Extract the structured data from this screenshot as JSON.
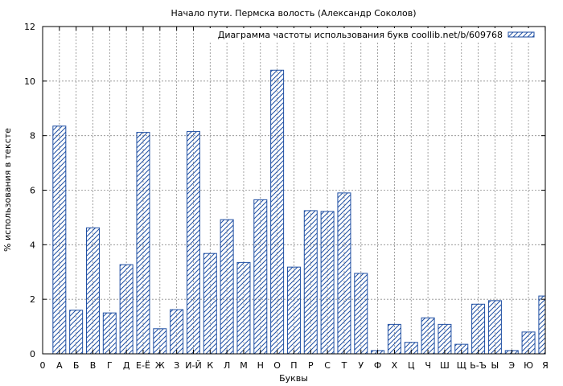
{
  "chart_data": {
    "type": "bar",
    "title": "Начало пути. Пермска волость (Александр Соколов)",
    "xlabel": "Буквы",
    "ylabel": "% использования в тексте",
    "ylim": [
      0,
      12
    ],
    "yticks": [
      "0",
      "2",
      "4",
      "6",
      "8",
      "10",
      "12"
    ],
    "xtick_zero": "0",
    "grid": true,
    "legend_position": "top-right",
    "series": [
      {
        "name": "Диаграмма частоты использования букв coollib.net/b/609768",
        "color": "#1f4fa3"
      }
    ],
    "categories": [
      "А",
      "Б",
      "В",
      "Г",
      "Д",
      "Е-Ё",
      "Ж",
      "З",
      "И-Й",
      "К",
      "Л",
      "М",
      "Н",
      "О",
      "П",
      "Р",
      "С",
      "Т",
      "У",
      "Ф",
      "Х",
      "Ц",
      "Ч",
      "Ш",
      "Щ",
      "Ь-Ъ",
      "Ы",
      "Э",
      "Ю",
      "Я"
    ],
    "values": [
      8.35,
      1.6,
      4.62,
      1.5,
      3.27,
      8.12,
      0.92,
      1.62,
      8.15,
      3.68,
      4.92,
      3.35,
      5.65,
      10.4,
      3.18,
      5.25,
      5.22,
      5.9,
      2.95,
      0.12,
      1.08,
      0.42,
      1.32,
      1.08,
      0.35,
      1.82,
      1.95,
      0.12,
      0.8,
      2.12
    ]
  }
}
